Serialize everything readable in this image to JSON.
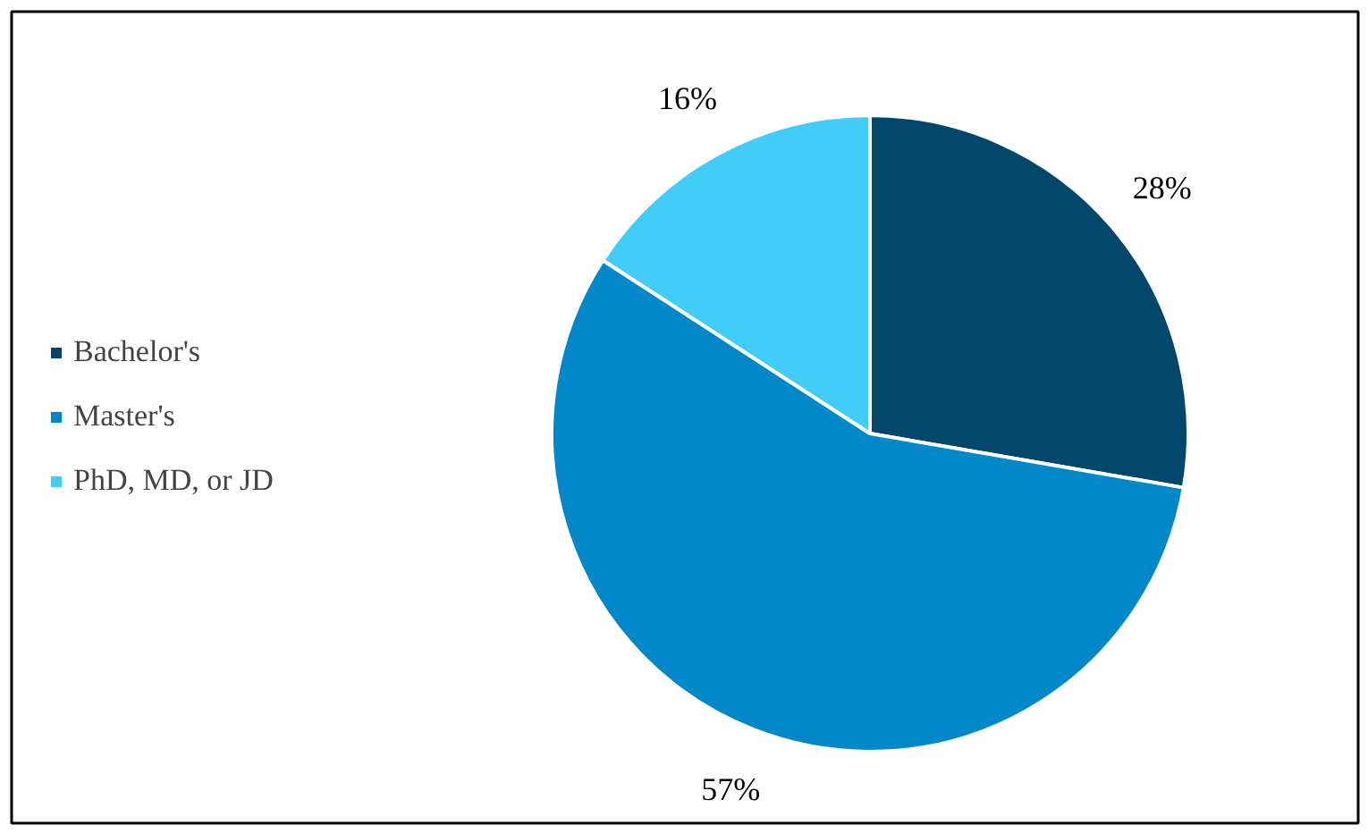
{
  "chart_data": {
    "type": "pie",
    "categories": [
      "Bachelor's",
      "Master's",
      "PhD, MD, or JD"
    ],
    "values": [
      28,
      57,
      16
    ],
    "colors": [
      "#00476b",
      "#0088c9",
      "#42ccf8"
    ],
    "value_labels": [
      "28%",
      "57%",
      "16%"
    ],
    "legend": "left"
  }
}
